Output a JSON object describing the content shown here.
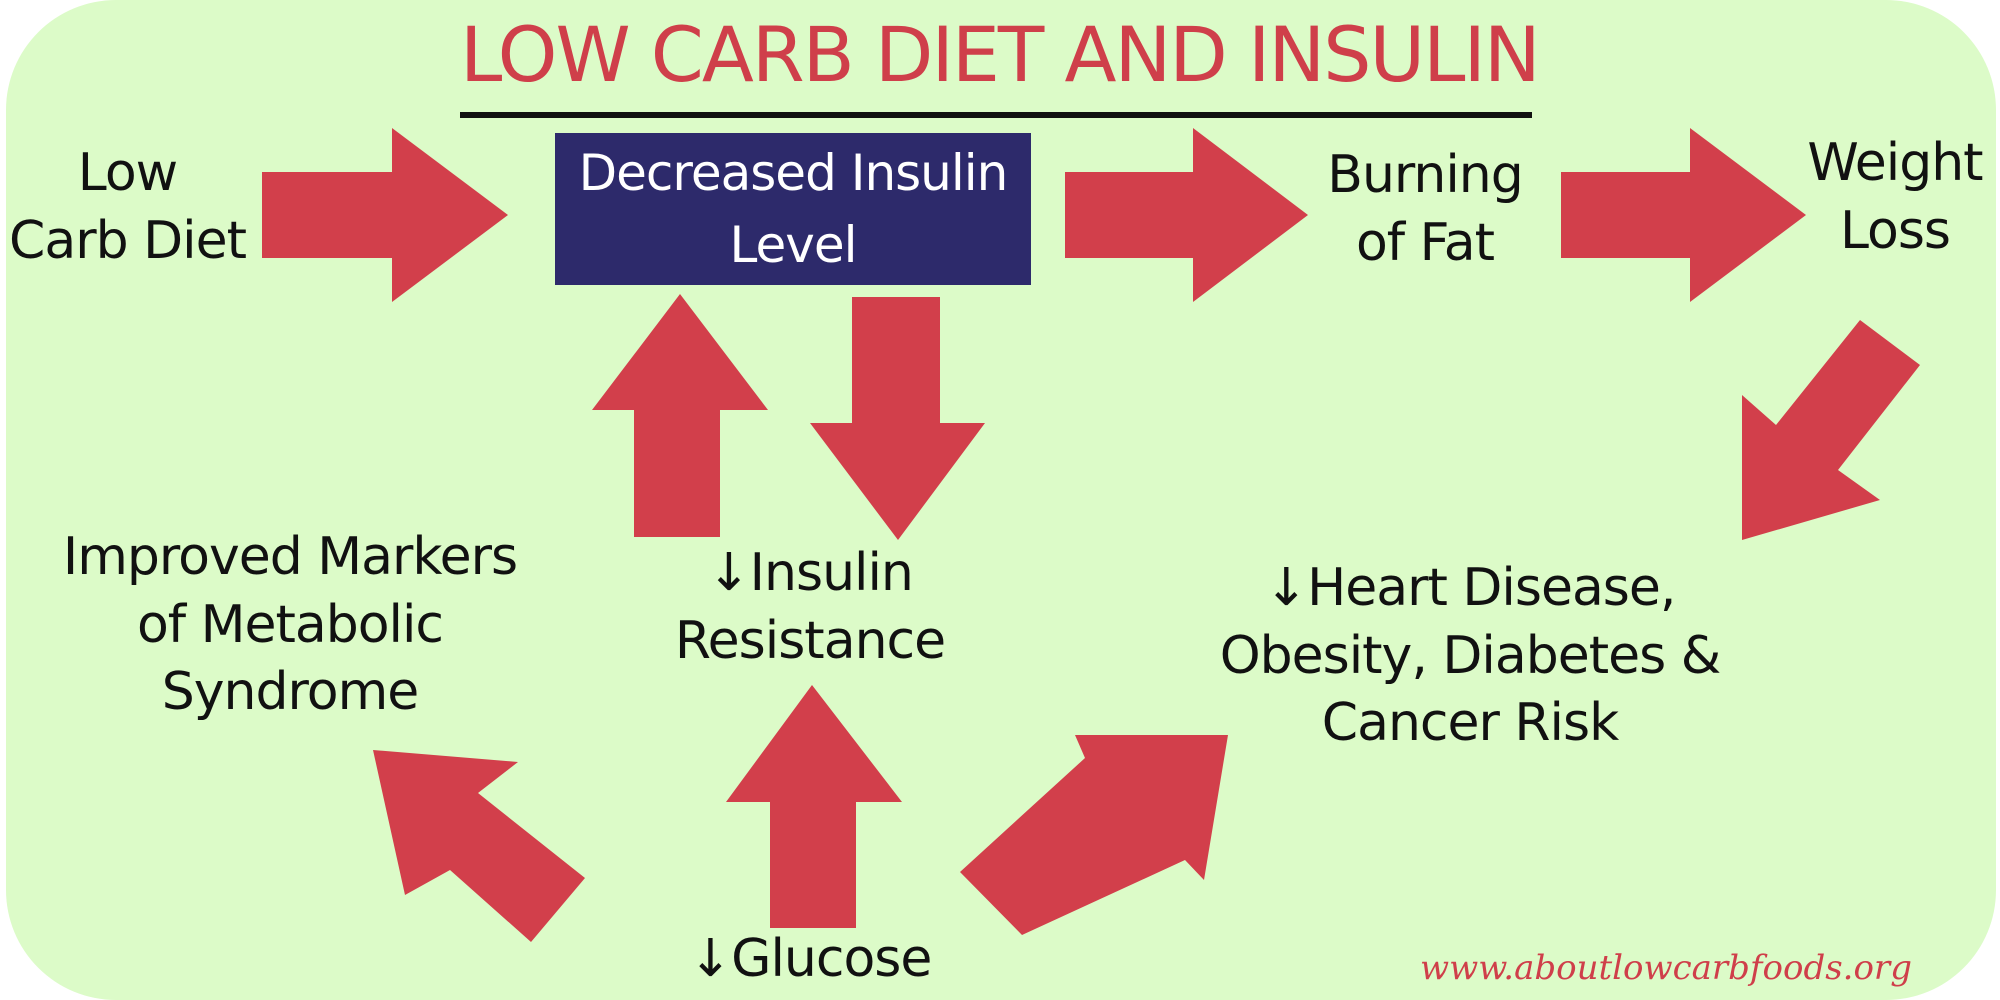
{
  "title": "LOW CARB DIET AND INSULIN",
  "nodes": {
    "low_carb_diet": [
      "Low",
      "Carb Diet"
    ],
    "decreased_insulin": [
      "Decreased Insulin",
      "Level"
    ],
    "burning_fat": [
      "Burning",
      "of Fat"
    ],
    "weight_loss": [
      "Weight",
      "Loss"
    ],
    "insulin_resistance": [
      "↓Insulin",
      "Resistance"
    ],
    "improved_markers": [
      "Improved Markers",
      "of Metabolic",
      "Syndrome"
    ],
    "heart_disease": [
      "↓Heart Disease,",
      "Obesity, Diabetes &",
      "Cancer Risk"
    ],
    "glucose": [
      "↓Glucose"
    ]
  },
  "watermark": "www.aboutlowcarbfoods.org",
  "colors": {
    "background": "#dcfbc8",
    "title": "#cf3f4a",
    "arrow": "#d23f4b",
    "highlight_box": "#2d2a6b"
  }
}
